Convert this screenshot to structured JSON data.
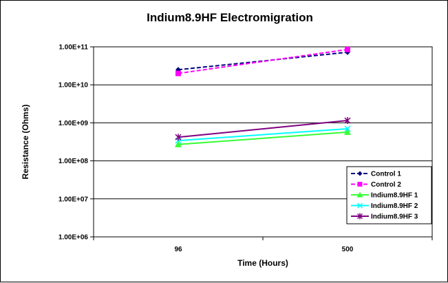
{
  "chart_data": {
    "type": "line",
    "title": "Indium8.9HF Electromigration",
    "xlabel": "Time (Hours)",
    "ylabel": "Resistance (Ohms)",
    "categories": [
      "96",
      "500"
    ],
    "y_scale": "log",
    "ylim": [
      1000000,
      100000000000
    ],
    "y_tick_labels": [
      "1.00E+06",
      "1.00E+07",
      "1.00E+08",
      "1.00E+09",
      "1.00E+10",
      "1.00E+11"
    ],
    "grid": "horizontal",
    "legend_position": "right",
    "series": [
      {
        "name": "Control 1",
        "values": [
          25000000000,
          72000000000
        ],
        "color": "#000080",
        "dash": true,
        "marker": "diamond"
      },
      {
        "name": "Control 2",
        "values": [
          20000000000,
          85000000000
        ],
        "color": "#ff00ff",
        "dash": true,
        "marker": "square"
      },
      {
        "name": "Indium8.9HF 1",
        "values": [
          270000000,
          570000000
        ],
        "color": "#33ff33",
        "dash": false,
        "marker": "triangle"
      },
      {
        "name": "Indium8.9HF 2",
        "values": [
          340000000,
          700000000
        ],
        "color": "#00ffff",
        "dash": false,
        "marker": "x"
      },
      {
        "name": "Indium8.9HF 3",
        "values": [
          420000000,
          1150000000
        ],
        "color": "#800080",
        "dash": false,
        "marker": "star"
      }
    ]
  }
}
